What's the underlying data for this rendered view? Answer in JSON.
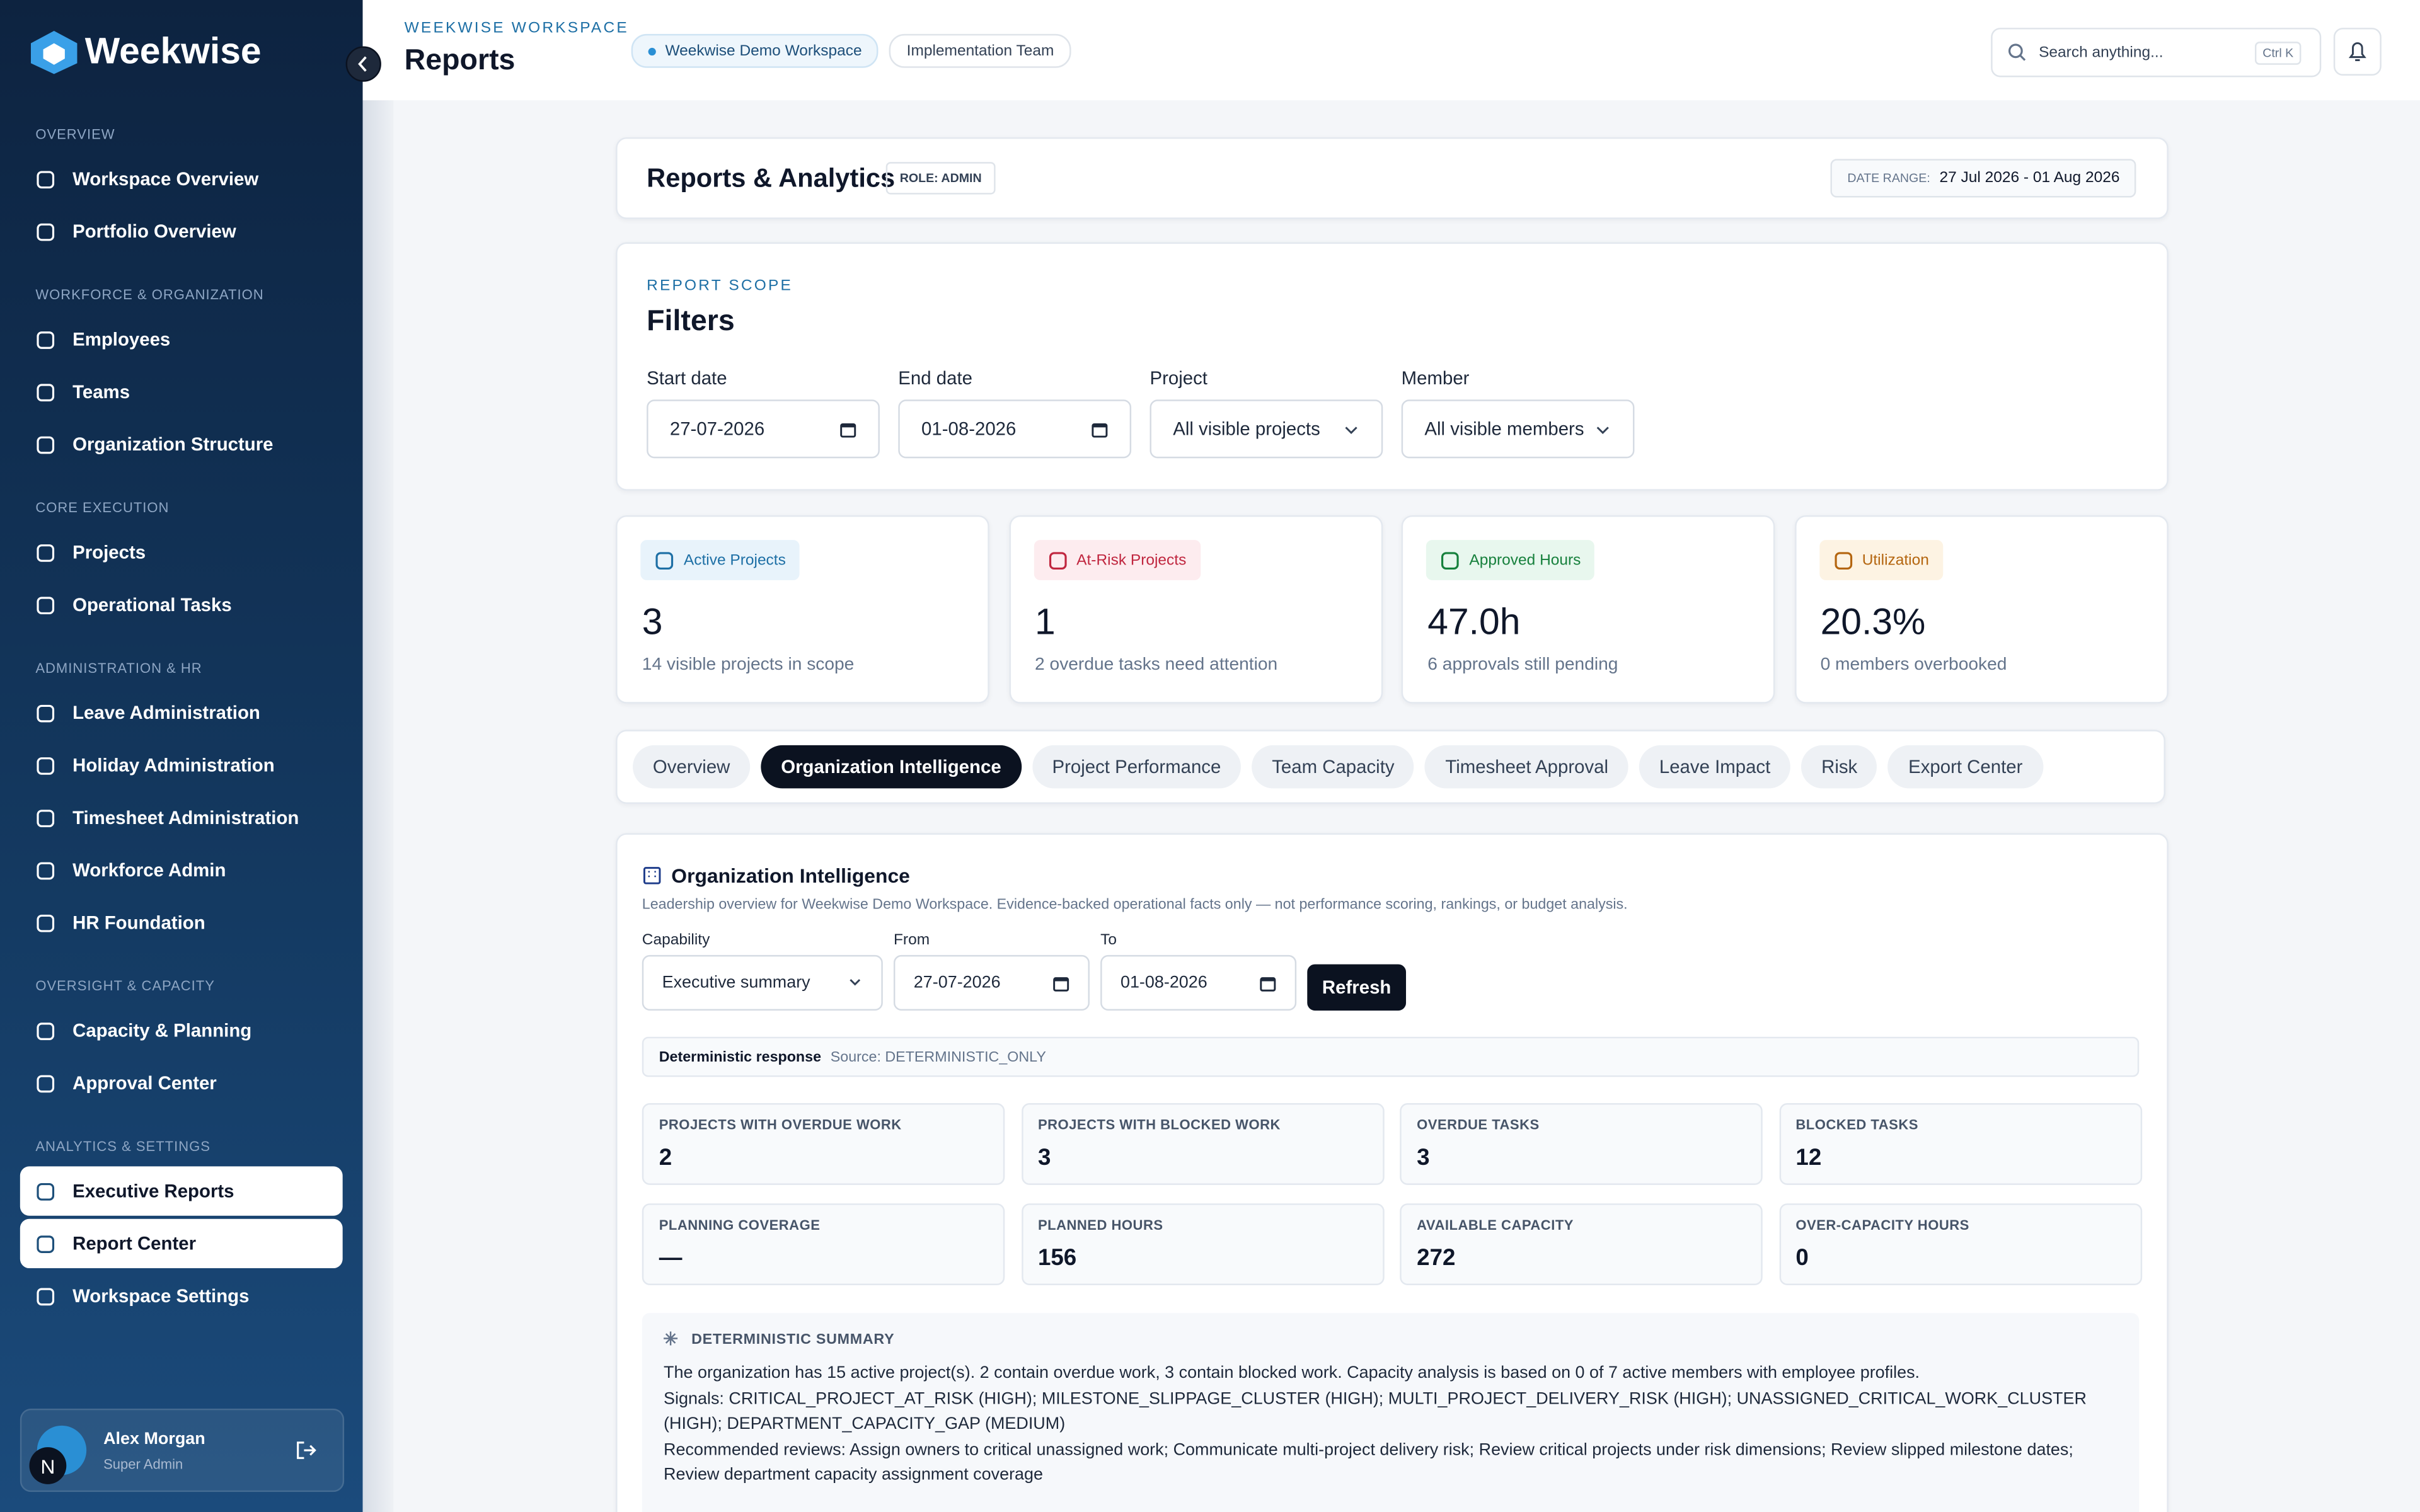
{
  "sidebar": {
    "brand": "Weekwise",
    "sections": [
      {
        "title": "OVERVIEW",
        "items": [
          "Workspace Overview",
          "Portfolio Overview"
        ]
      },
      {
        "title": "WORKFORCE & ORGANIZATION",
        "items": [
          "Employees",
          "Teams",
          "Organization Structure"
        ]
      },
      {
        "title": "CORE EXECUTION",
        "items": [
          "Projects",
          "Operational Tasks"
        ]
      },
      {
        "title": "ADMINISTRATION & HR",
        "items": [
          "Leave Administration",
          "Holiday Administration",
          "Timesheet Administration",
          "Workforce Admin",
          "HR Foundation"
        ]
      },
      {
        "title": "OVERSIGHT & CAPACITY",
        "items": [
          "Capacity & Planning",
          "Approval Center"
        ]
      },
      {
        "title": "ANALYTICS & SETTINGS",
        "items": [
          "Executive Reports",
          "Report Center",
          "Workspace Settings"
        ]
      }
    ],
    "active_items": [
      "Executive Reports",
      "Report Center"
    ],
    "user": {
      "initial": "N",
      "name": "Alex Morgan",
      "role": "Super Admin"
    }
  },
  "header": {
    "eyebrow": "WEEKWISE WORKSPACE",
    "title": "Reports",
    "chips": [
      "Weekwise Demo Workspace",
      "Implementation Team"
    ],
    "search_placeholder": "Search anything...",
    "shortcut": "Ctrl K"
  },
  "page": {
    "title": "Reports & Analytics",
    "role": "ROLE: ADMIN",
    "date_range_label": "DATE RANGE:",
    "date_range": "27 Jul 2026 - 01 Aug 2026"
  },
  "filters": {
    "eyebrow": "REPORT SCOPE",
    "title": "Filters",
    "fields": [
      {
        "label": "Start date",
        "value": "27-07-2026",
        "kind": "date"
      },
      {
        "label": "End date",
        "value": "01-08-2026",
        "kind": "date"
      },
      {
        "label": "Project",
        "value": "All visible projects",
        "kind": "select"
      },
      {
        "label": "Member",
        "value": "All visible members",
        "kind": "select"
      }
    ]
  },
  "kpis": [
    {
      "label": "Active Projects",
      "value": "3",
      "note": "14 visible projects in scope",
      "color": "#1d6fa5",
      "bg": "#e8f3fb"
    },
    {
      "label": "At-Risk Projects",
      "value": "1",
      "note": "2 overdue tasks need attention",
      "color": "#c0263f",
      "bg": "#fdecef"
    },
    {
      "label": "Approved Hours",
      "value": "47.0h",
      "note": "6 approvals still pending",
      "color": "#16803c",
      "bg": "#e8f7ee"
    },
    {
      "label": "Utilization",
      "value": "20.3%",
      "note": "0 members overbooked",
      "color": "#b4650f",
      "bg": "#fdf3e3"
    }
  ],
  "tabs": {
    "items": [
      "Overview",
      "Organization Intelligence",
      "Project Performance",
      "Team Capacity",
      "Timesheet Approval",
      "Leave Impact",
      "Risk",
      "Export Center"
    ],
    "active": 1
  },
  "intelligence": {
    "title": "Organization Intelligence",
    "description": "Leadership overview for Weekwise Demo Workspace. Evidence-backed operational facts only — not performance scoring, rankings, or budget analysis.",
    "capability_label": "Capability",
    "capability_value": "Executive summary",
    "from_label": "From",
    "from_value": "27-07-2026",
    "to_label": "To",
    "to_value": "01-08-2026",
    "refresh": "Refresh",
    "response_label": "Deterministic response",
    "response_source": "Source: DETERMINISTIC_ONLY",
    "metrics": [
      {
        "label": "PROJECTS WITH OVERDUE WORK",
        "value": "2"
      },
      {
        "label": "PROJECTS WITH BLOCKED WORK",
        "value": "3"
      },
      {
        "label": "OVERDUE TASKS",
        "value": "3"
      },
      {
        "label": "BLOCKED TASKS",
        "value": "12"
      },
      {
        "label": "PLANNING COVERAGE",
        "value": "—"
      },
      {
        "label": "PLANNED HOURS",
        "value": "156"
      },
      {
        "label": "AVAILABLE CAPACITY",
        "value": "272"
      },
      {
        "label": "OVER-CAPACITY HOURS",
        "value": "0"
      }
    ],
    "summary_title": "DETERMINISTIC SUMMARY",
    "summary_lines": [
      "The organization has 15 active project(s). 2 contain overdue work, 3 contain blocked work. Capacity analysis is based on 0 of 7 active members with employee profiles.",
      "Signals: CRITICAL_PROJECT_AT_RISK (HIGH); MILESTONE_SLIPPAGE_CLUSTER (HIGH); MULTI_PROJECT_DELIVERY_RISK (HIGH); UNASSIGNED_CRITICAL_WORK_CLUSTER (HIGH); DEPARTMENT_CAPACITY_GAP (MEDIUM)",
      "Recommended reviews: Assign owners to critical unassigned work; Communicate multi-project delivery risk; Review critical projects under risk dimensions; Review slipped milestone dates; Review department capacity assignment coverage"
    ]
  }
}
